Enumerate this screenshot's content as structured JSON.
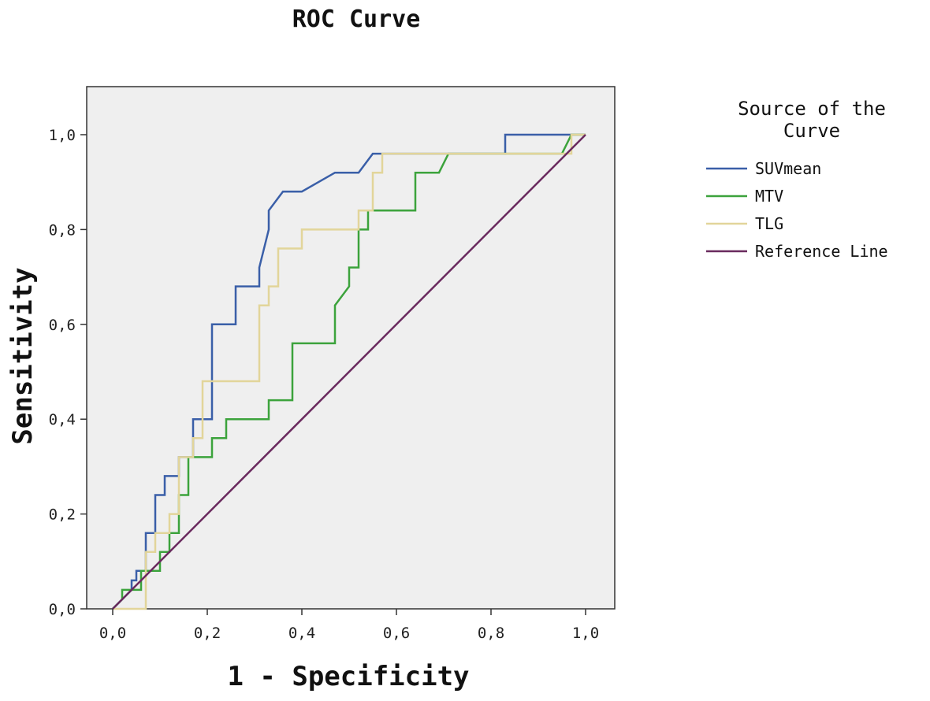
{
  "chart_data": {
    "type": "line",
    "title": "ROC Curve",
    "xlabel": "1 - Specificity",
    "ylabel": "Sensitivity",
    "xlim": [
      0.0,
      1.0
    ],
    "ylim": [
      0.0,
      1.0
    ],
    "x_ticks": [
      "0,0",
      "0,2",
      "0,4",
      "0,6",
      "0,8",
      "1,0"
    ],
    "y_ticks": [
      "0,0",
      "0,2",
      "0,4",
      "0,6",
      "0,8",
      "1,0"
    ],
    "grid": false,
    "legend_title": "Source of the Curve",
    "legend_position": "right",
    "plot_background": "#efefef",
    "series": [
      {
        "name": "SUVmean",
        "color": "#3a5fa8",
        "points": [
          [
            0.0,
            0.0
          ],
          [
            0.04,
            0.04
          ],
          [
            0.04,
            0.06
          ],
          [
            0.05,
            0.06
          ],
          [
            0.05,
            0.08
          ],
          [
            0.07,
            0.08
          ],
          [
            0.07,
            0.16
          ],
          [
            0.09,
            0.16
          ],
          [
            0.09,
            0.24
          ],
          [
            0.11,
            0.24
          ],
          [
            0.11,
            0.28
          ],
          [
            0.14,
            0.28
          ],
          [
            0.14,
            0.32
          ],
          [
            0.17,
            0.32
          ],
          [
            0.17,
            0.4
          ],
          [
            0.21,
            0.4
          ],
          [
            0.21,
            0.6
          ],
          [
            0.26,
            0.6
          ],
          [
            0.26,
            0.68
          ],
          [
            0.31,
            0.68
          ],
          [
            0.31,
            0.72
          ],
          [
            0.33,
            0.8
          ],
          [
            0.33,
            0.84
          ],
          [
            0.36,
            0.88
          ],
          [
            0.4,
            0.88
          ],
          [
            0.47,
            0.92
          ],
          [
            0.52,
            0.92
          ],
          [
            0.55,
            0.96
          ],
          [
            0.83,
            0.96
          ],
          [
            0.83,
            1.0
          ],
          [
            0.97,
            1.0
          ],
          [
            1.0,
            1.0
          ]
        ]
      },
      {
        "name": "MTV",
        "color": "#3ca33c",
        "points": [
          [
            0.0,
            0.0
          ],
          [
            0.02,
            0.02
          ],
          [
            0.02,
            0.04
          ],
          [
            0.06,
            0.04
          ],
          [
            0.06,
            0.08
          ],
          [
            0.1,
            0.08
          ],
          [
            0.1,
            0.12
          ],
          [
            0.12,
            0.12
          ],
          [
            0.12,
            0.16
          ],
          [
            0.14,
            0.16
          ],
          [
            0.14,
            0.24
          ],
          [
            0.16,
            0.24
          ],
          [
            0.16,
            0.32
          ],
          [
            0.21,
            0.32
          ],
          [
            0.21,
            0.36
          ],
          [
            0.24,
            0.36
          ],
          [
            0.24,
            0.4
          ],
          [
            0.33,
            0.4
          ],
          [
            0.33,
            0.44
          ],
          [
            0.38,
            0.44
          ],
          [
            0.38,
            0.56
          ],
          [
            0.47,
            0.56
          ],
          [
            0.47,
            0.64
          ],
          [
            0.5,
            0.68
          ],
          [
            0.5,
            0.72
          ],
          [
            0.52,
            0.72
          ],
          [
            0.52,
            0.8
          ],
          [
            0.54,
            0.8
          ],
          [
            0.54,
            0.84
          ],
          [
            0.64,
            0.84
          ],
          [
            0.64,
            0.92
          ],
          [
            0.69,
            0.92
          ],
          [
            0.71,
            0.96
          ],
          [
            0.95,
            0.96
          ],
          [
            0.97,
            1.0
          ],
          [
            1.0,
            1.0
          ]
        ]
      },
      {
        "name": "TLG",
        "color": "#e2d59a",
        "points": [
          [
            0.0,
            0.0
          ],
          [
            0.07,
            0.0
          ],
          [
            0.07,
            0.12
          ],
          [
            0.09,
            0.12
          ],
          [
            0.09,
            0.16
          ],
          [
            0.12,
            0.16
          ],
          [
            0.12,
            0.2
          ],
          [
            0.14,
            0.2
          ],
          [
            0.14,
            0.32
          ],
          [
            0.17,
            0.32
          ],
          [
            0.17,
            0.36
          ],
          [
            0.19,
            0.36
          ],
          [
            0.19,
            0.48
          ],
          [
            0.31,
            0.48
          ],
          [
            0.31,
            0.64
          ],
          [
            0.33,
            0.64
          ],
          [
            0.33,
            0.68
          ],
          [
            0.35,
            0.68
          ],
          [
            0.35,
            0.76
          ],
          [
            0.4,
            0.76
          ],
          [
            0.4,
            0.8
          ],
          [
            0.52,
            0.8
          ],
          [
            0.52,
            0.84
          ],
          [
            0.55,
            0.84
          ],
          [
            0.55,
            0.92
          ],
          [
            0.57,
            0.92
          ],
          [
            0.57,
            0.96
          ],
          [
            0.97,
            0.96
          ],
          [
            0.97,
            1.0
          ],
          [
            1.0,
            1.0
          ]
        ]
      },
      {
        "name": "Reference Line",
        "color": "#6a2a5e",
        "points": [
          [
            0.0,
            0.0
          ],
          [
            1.0,
            1.0
          ]
        ]
      }
    ]
  }
}
